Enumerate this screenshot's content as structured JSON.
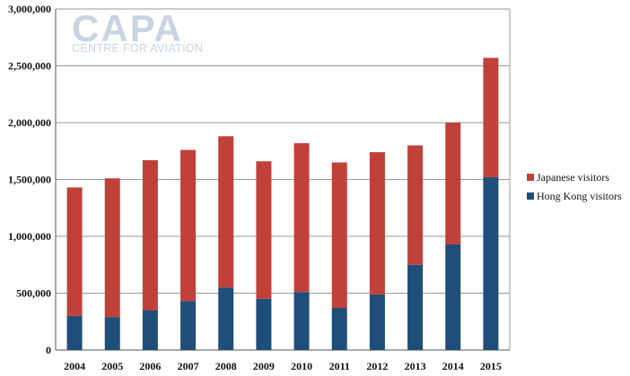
{
  "logo": {
    "name": "CAPA",
    "tagline": "CENTRE FOR AVIATION"
  },
  "chart_data": {
    "type": "bar",
    "stacked": true,
    "categories": [
      "2004",
      "2005",
      "2006",
      "2007",
      "2008",
      "2009",
      "2010",
      "2011",
      "2012",
      "2013",
      "2014",
      "2015"
    ],
    "series": [
      {
        "name": "Hong Kong visitors",
        "color": "#1f4e79",
        "values": [
          300000,
          290000,
          350000,
          430000,
          550000,
          450000,
          510000,
          370000,
          490000,
          750000,
          930000,
          1520000
        ]
      },
      {
        "name": "Japanese visitors",
        "color": "#c0413a",
        "values": [
          1130000,
          1220000,
          1320000,
          1330000,
          1330000,
          1210000,
          1310000,
          1280000,
          1250000,
          1050000,
          1070000,
          1050000
        ]
      }
    ],
    "ylim": [
      0,
      3000000
    ],
    "yticks": [
      0,
      500000,
      1000000,
      1500000,
      2000000,
      2500000,
      3000000
    ],
    "ytick_labels": [
      "0",
      "500,000",
      "1,000,000",
      "1,500,000",
      "2,000,000",
      "2,500,000",
      "3,000,000"
    ],
    "grid": true,
    "legend": {
      "position": "right",
      "entries": [
        {
          "label": "Japanese visitors",
          "color": "#c0413a"
        },
        {
          "label": "Hong Kong visitors",
          "color": "#1f4e79"
        }
      ]
    }
  }
}
